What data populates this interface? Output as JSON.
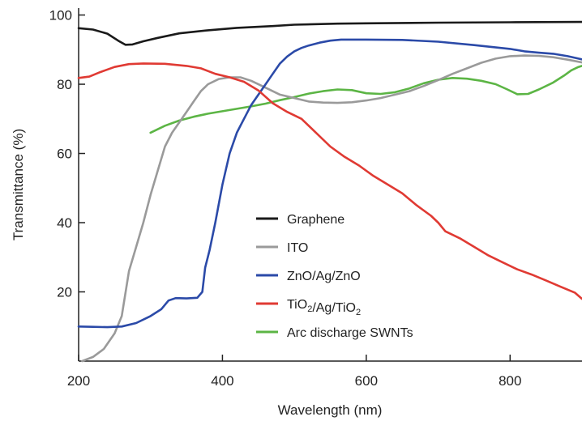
{
  "chart_data": {
    "type": "line",
    "title": "",
    "xlabel": "Wavelength (nm)",
    "ylabel": "Transmittance (%)",
    "xlim": [
      200,
      900
    ],
    "ylim": [
      0,
      102
    ],
    "xticks": [
      200,
      400,
      600,
      800
    ],
    "yticks": [
      20,
      40,
      60,
      80,
      100
    ],
    "grid": false,
    "legend_position": "center-right",
    "series": [
      {
        "name": "Graphene",
        "color": "#1a1a1a",
        "points": [
          [
            200,
            96.2
          ],
          [
            220,
            95.8
          ],
          [
            240,
            94.6
          ],
          [
            255,
            92.6
          ],
          [
            265,
            91.4
          ],
          [
            275,
            91.5
          ],
          [
            290,
            92.4
          ],
          [
            310,
            93.4
          ],
          [
            340,
            94.7
          ],
          [
            380,
            95.6
          ],
          [
            420,
            96.3
          ],
          [
            470,
            96.8
          ],
          [
            500,
            97.2
          ],
          [
            560,
            97.5
          ],
          [
            600,
            97.6
          ],
          [
            700,
            97.8
          ],
          [
            800,
            97.9
          ],
          [
            900,
            98.0
          ]
        ]
      },
      {
        "name": "ITO",
        "color": "#9a9a9a",
        "points": [
          [
            205,
            0
          ],
          [
            220,
            1.2
          ],
          [
            235,
            3.5
          ],
          [
            250,
            8
          ],
          [
            260,
            13
          ],
          [
            270,
            26
          ],
          [
            280,
            33
          ],
          [
            290,
            40
          ],
          [
            300,
            48
          ],
          [
            310,
            55
          ],
          [
            320,
            62
          ],
          [
            330,
            66
          ],
          [
            340,
            69
          ],
          [
            350,
            72
          ],
          [
            360,
            75
          ],
          [
            370,
            78
          ],
          [
            380,
            80
          ],
          [
            395,
            81.5
          ],
          [
            410,
            82
          ],
          [
            425,
            82
          ],
          [
            440,
            81
          ],
          [
            460,
            79
          ],
          [
            480,
            77
          ],
          [
            500,
            76
          ],
          [
            520,
            75
          ],
          [
            540,
            74.7
          ],
          [
            560,
            74.6
          ],
          [
            580,
            74.8
          ],
          [
            600,
            75.3
          ],
          [
            620,
            76
          ],
          [
            640,
            77
          ],
          [
            660,
            78
          ],
          [
            680,
            79.5
          ],
          [
            700,
            81.2
          ],
          [
            720,
            83
          ],
          [
            740,
            84.6
          ],
          [
            760,
            86.2
          ],
          [
            780,
            87.4
          ],
          [
            800,
            88.1
          ],
          [
            820,
            88.3
          ],
          [
            840,
            88.2
          ],
          [
            860,
            87.8
          ],
          [
            880,
            87.1
          ],
          [
            900,
            86.3
          ]
        ]
      },
      {
        "name": "ZnO/Ag/ZnO",
        "color": "#2b4aa8",
        "points": [
          [
            200,
            10
          ],
          [
            220,
            9.9
          ],
          [
            240,
            9.8
          ],
          [
            260,
            10
          ],
          [
            280,
            11
          ],
          [
            300,
            13
          ],
          [
            315,
            15
          ],
          [
            325,
            17.5
          ],
          [
            335,
            18.2
          ],
          [
            350,
            18.1
          ],
          [
            365,
            18.3
          ],
          [
            372,
            20
          ],
          [
            376,
            27
          ],
          [
            382,
            32
          ],
          [
            390,
            40
          ],
          [
            400,
            51
          ],
          [
            410,
            60
          ],
          [
            420,
            66
          ],
          [
            430,
            70
          ],
          [
            440,
            74
          ],
          [
            450,
            77
          ],
          [
            460,
            80
          ],
          [
            470,
            83
          ],
          [
            480,
            86
          ],
          [
            490,
            88
          ],
          [
            500,
            89.5
          ],
          [
            510,
            90.5
          ],
          [
            520,
            91.2
          ],
          [
            535,
            92
          ],
          [
            550,
            92.6
          ],
          [
            565,
            92.9
          ],
          [
            600,
            92.9
          ],
          [
            650,
            92.8
          ],
          [
            700,
            92.3
          ],
          [
            750,
            91.3
          ],
          [
            800,
            90.2
          ],
          [
            820,
            89.5
          ],
          [
            840,
            89.1
          ],
          [
            860,
            88.8
          ],
          [
            880,
            88.1
          ],
          [
            900,
            87.2
          ]
        ]
      },
      {
        "name": "TiO2/Ag/TiO2",
        "color": "#e03a33",
        "points": [
          [
            200,
            81.8
          ],
          [
            215,
            82.2
          ],
          [
            230,
            83.5
          ],
          [
            250,
            85
          ],
          [
            270,
            85.8
          ],
          [
            290,
            86
          ],
          [
            320,
            85.9
          ],
          [
            350,
            85.3
          ],
          [
            370,
            84.6
          ],
          [
            390,
            83
          ],
          [
            410,
            82
          ],
          [
            430,
            80.7
          ],
          [
            450,
            78.2
          ],
          [
            470,
            74.5
          ],
          [
            490,
            72
          ],
          [
            510,
            70
          ],
          [
            530,
            66
          ],
          [
            550,
            62
          ],
          [
            570,
            59
          ],
          [
            590,
            56.5
          ],
          [
            610,
            53.5
          ],
          [
            630,
            51
          ],
          [
            650,
            48.5
          ],
          [
            670,
            45
          ],
          [
            690,
            42
          ],
          [
            700,
            40
          ],
          [
            710,
            37.5
          ],
          [
            730,
            35.5
          ],
          [
            750,
            33
          ],
          [
            770,
            30.5
          ],
          [
            790,
            28.5
          ],
          [
            810,
            26.5
          ],
          [
            830,
            25
          ],
          [
            850,
            23.3
          ],
          [
            870,
            21.5
          ],
          [
            890,
            19.8
          ],
          [
            900,
            18
          ]
        ]
      },
      {
        "name": "Arc discharge SWNTs",
        "color": "#5cb545",
        "points": [
          [
            300,
            66
          ],
          [
            320,
            68
          ],
          [
            340,
            69.5
          ],
          [
            360,
            70.6
          ],
          [
            380,
            71.5
          ],
          [
            400,
            72.2
          ],
          [
            420,
            72.9
          ],
          [
            440,
            73.6
          ],
          [
            460,
            74.4
          ],
          [
            480,
            75.4
          ],
          [
            500,
            76.3
          ],
          [
            520,
            77.3
          ],
          [
            540,
            78
          ],
          [
            560,
            78.5
          ],
          [
            580,
            78.3
          ],
          [
            600,
            77.4
          ],
          [
            620,
            77.2
          ],
          [
            640,
            77.7
          ],
          [
            660,
            78.8
          ],
          [
            680,
            80.3
          ],
          [
            700,
            81.3
          ],
          [
            720,
            81.8
          ],
          [
            740,
            81.6
          ],
          [
            760,
            81
          ],
          [
            780,
            80
          ],
          [
            795,
            78.6
          ],
          [
            810,
            77.1
          ],
          [
            825,
            77.2
          ],
          [
            840,
            78.5
          ],
          [
            860,
            80.5
          ],
          [
            875,
            82.5
          ],
          [
            885,
            84
          ],
          [
            895,
            85
          ],
          [
            900,
            85.3
          ]
        ]
      }
    ]
  }
}
